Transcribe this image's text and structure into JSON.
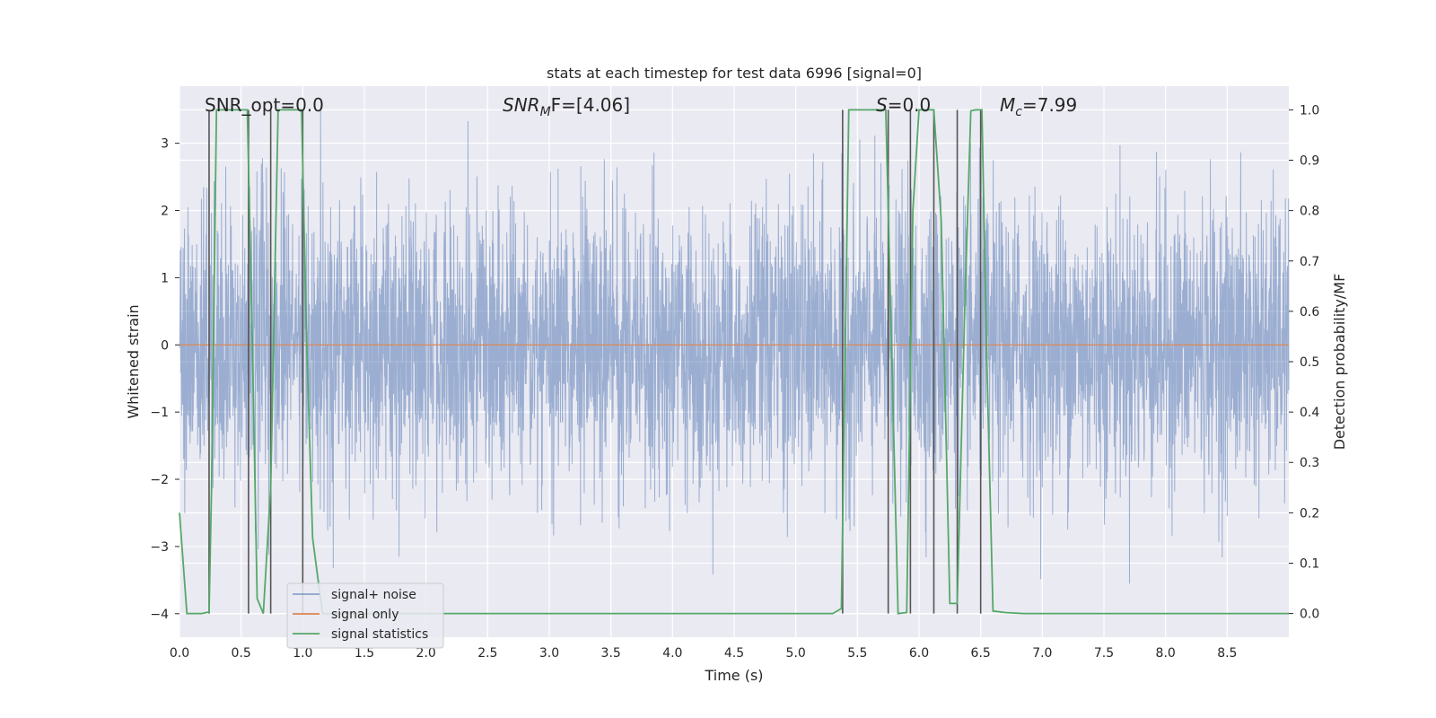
{
  "chart_data": {
    "type": "line",
    "title": "stats at each timestep for test data 6996 [signal=0]",
    "xlabel": "Time (s)",
    "ylabel": "Whitened strain",
    "y2label": "Detection probability/MF",
    "xlim": [
      0.0,
      9.0
    ],
    "ylim": [
      -4.35,
      3.85
    ],
    "y2lim": [
      -0.047,
      1.047
    ],
    "xticks": [
      "0.0",
      "0.5",
      "1.0",
      "1.5",
      "2.0",
      "2.5",
      "3.0",
      "3.5",
      "4.0",
      "4.5",
      "5.0",
      "5.5",
      "6.0",
      "6.5",
      "7.0",
      "7.5",
      "8.0",
      "8.5"
    ],
    "yticks": [
      "3",
      "2",
      "1",
      "0",
      "−1",
      "−2",
      "−3",
      "−4"
    ],
    "y2ticks": [
      "1.0",
      "0.9",
      "0.8",
      "0.7",
      "0.6",
      "0.5",
      "0.4",
      "0.3",
      "0.2",
      "0.1",
      "0.0"
    ],
    "grid": true,
    "legend_position": "lower-left",
    "colors": {
      "plot_bg": "#EAEAF2",
      "noise": "#4C72B0",
      "signal_only": "#DD8452",
      "stats": "#55A868",
      "vlines": "#555555"
    },
    "annotations": {
      "snr_opt": "SNR_opt=0.0",
      "snr_mf_main": "SNR",
      "snr_mf_sub": "M",
      "snr_mf_rest": "F=[4.06]",
      "s_main": "S",
      "s_rest": "=0.0",
      "mc_main": "M",
      "mc_sub": "c",
      "mc_rest": "=7.99"
    },
    "series": [
      {
        "name": "signal+ noise",
        "kind": "noise",
        "amplitude_envelope": 2.0,
        "extreme_range": [
          -4.1,
          3.5
        ]
      },
      {
        "name": "signal only",
        "values": [
          [
            0.0,
            0.0
          ],
          [
            9.0,
            0.0
          ]
        ]
      },
      {
        "name": "signal statistics",
        "axis": "right",
        "points": [
          [
            0.0,
            0.2
          ],
          [
            0.03,
            0.1
          ],
          [
            0.06,
            0.0
          ],
          [
            0.18,
            0.0
          ],
          [
            0.24,
            0.003
          ],
          [
            0.26,
            0.25
          ],
          [
            0.3,
            1.0
          ],
          [
            0.55,
            1.0
          ],
          [
            0.59,
            0.55
          ],
          [
            0.63,
            0.03
          ],
          [
            0.68,
            0.0
          ],
          [
            0.74,
            0.25
          ],
          [
            0.8,
            1.0
          ],
          [
            0.99,
            1.0
          ],
          [
            1.03,
            0.55
          ],
          [
            1.08,
            0.15
          ],
          [
            1.16,
            0.0
          ],
          [
            2.2,
            0.0
          ],
          [
            5.3,
            0.0
          ],
          [
            5.37,
            0.01
          ],
          [
            5.43,
            1.0
          ],
          [
            5.73,
            1.0
          ],
          [
            5.78,
            0.5
          ],
          [
            5.83,
            0.0
          ],
          [
            5.9,
            0.002
          ],
          [
            5.95,
            0.8
          ],
          [
            6.0,
            1.0
          ],
          [
            6.12,
            1.0
          ],
          [
            6.18,
            0.78
          ],
          [
            6.25,
            0.02
          ],
          [
            6.31,
            0.02
          ],
          [
            6.37,
            0.6
          ],
          [
            6.42,
            0.998
          ],
          [
            6.46,
            1.0
          ],
          [
            6.51,
            1.0
          ],
          [
            6.55,
            0.5
          ],
          [
            6.6,
            0.005
          ],
          [
            6.7,
            0.002
          ],
          [
            6.85,
            0.0
          ],
          [
            9.0,
            0.0
          ]
        ]
      }
    ],
    "vlines_x": [
      0.24,
      0.56,
      0.74,
      1.0,
      5.38,
      5.75,
      5.93,
      6.12,
      6.31,
      6.5
    ]
  }
}
